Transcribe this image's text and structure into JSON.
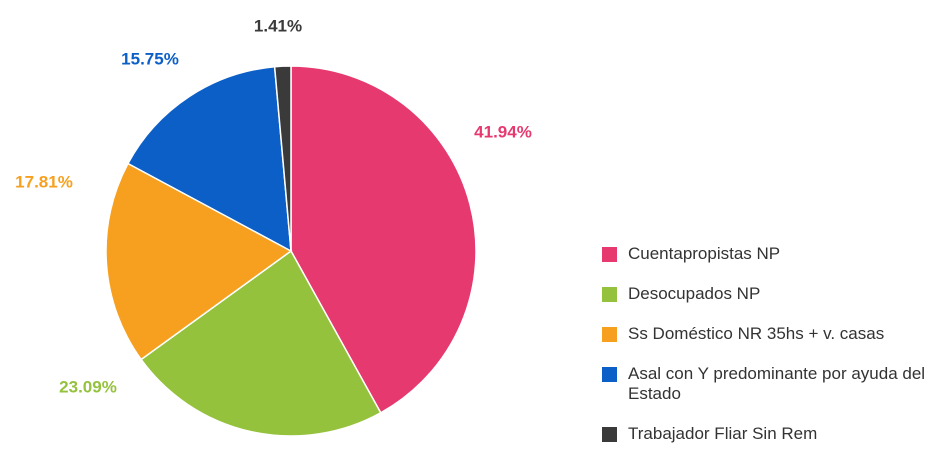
{
  "chart_data": {
    "type": "pie",
    "categories": [
      "Cuentapropistas NP",
      "Desocupados NP",
      "Ss Doméstico NR 35hs + v. casas",
      "Asal con Y predominante por ayuda del Estado",
      "Trabajador Fliar Sin Rem"
    ],
    "values": [
      41.94,
      23.09,
      17.81,
      15.75,
      1.41
    ],
    "value_labels": [
      "41.94%",
      "23.09%",
      "17.81%",
      "15.75%",
      "1.41%"
    ],
    "colors": [
      "#e5396f",
      "#95c23d",
      "#f7a01f",
      "#0b5fc6",
      "#3a3a3a"
    ],
    "legend": "right"
  }
}
